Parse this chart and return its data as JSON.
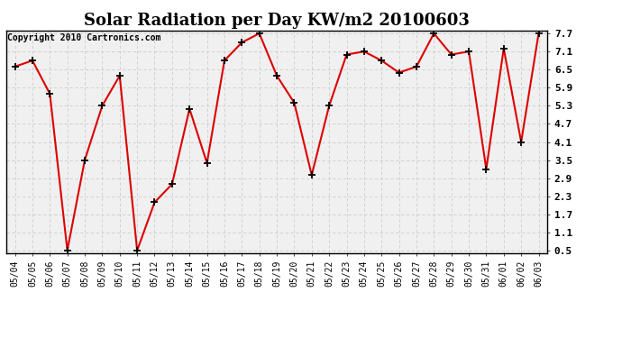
{
  "title": "Solar Radiation per Day KW/m2 20100603",
  "copyright": "Copyright 2010 Cartronics.com",
  "labels": [
    "05/04",
    "05/05",
    "05/06",
    "05/07",
    "05/08",
    "05/09",
    "05/10",
    "05/11",
    "05/12",
    "05/13",
    "05/14",
    "05/15",
    "05/16",
    "05/17",
    "05/18",
    "05/19",
    "05/20",
    "05/21",
    "05/22",
    "05/23",
    "05/24",
    "05/25",
    "05/26",
    "05/27",
    "05/28",
    "05/29",
    "05/30",
    "05/31",
    "06/01",
    "06/02",
    "06/03"
  ],
  "values": [
    6.6,
    6.8,
    5.7,
    0.5,
    3.5,
    5.3,
    6.3,
    0.5,
    2.1,
    2.7,
    5.2,
    3.4,
    6.8,
    7.4,
    7.7,
    6.3,
    5.4,
    3.0,
    5.3,
    7.0,
    7.1,
    6.8,
    6.4,
    6.6,
    7.7,
    7.0,
    7.1,
    3.2,
    7.2,
    4.1,
    7.7
  ],
  "line_color": "#dd0000",
  "marker": "+",
  "marker_color": "#000000",
  "ylim": [
    0.5,
    7.7
  ],
  "yticks": [
    0.5,
    1.1,
    1.7,
    2.3,
    2.9,
    3.5,
    4.1,
    4.7,
    5.3,
    5.9,
    6.5,
    7.1,
    7.7
  ],
  "bg_color": "#ffffff",
  "plot_bg_color": "#f0f0f0",
  "grid_color": "#cccccc",
  "title_fontsize": 13,
  "copyright_fontsize": 7,
  "tick_fontsize": 7,
  "ytick_fontsize": 8
}
